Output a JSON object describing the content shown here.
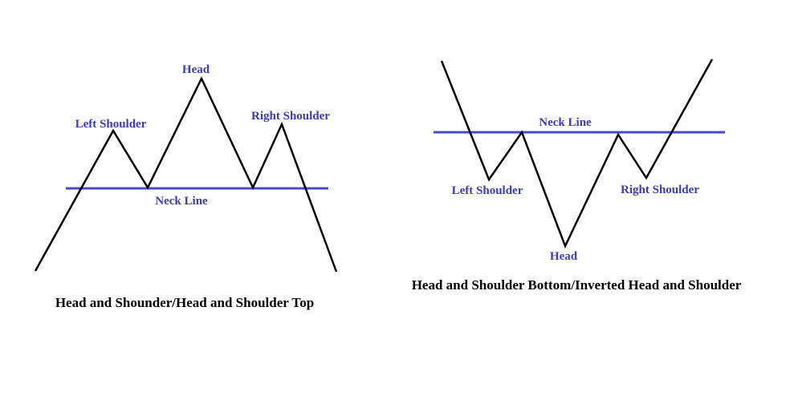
{
  "colors": {
    "price_line": "#000000",
    "neck_line": "#4a4ac8",
    "label": "#3b3bb3",
    "caption": "#000000"
  },
  "top_pattern": {
    "labels": {
      "head": "Head",
      "left_shoulder": "Left Shoulder",
      "right_shoulder": "Right Shoulder",
      "neck_line": "Neck Line"
    },
    "caption": "Head and Shounder/Head and Shoulder Top"
  },
  "bottom_pattern": {
    "labels": {
      "head": "Head",
      "left_shoulder": "Left Shoulder",
      "right_shoulder": "Right Shoulder",
      "neck_line": "Neck Line"
    },
    "caption": "Head and Shoulder Bottom/Inverted Head and Shoulder"
  }
}
